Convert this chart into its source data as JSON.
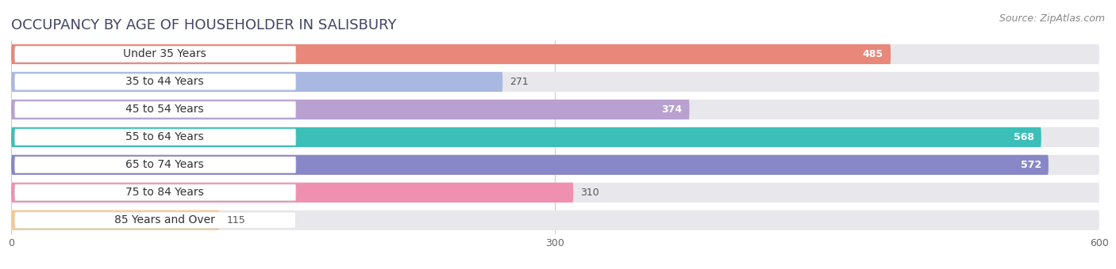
{
  "title": "OCCUPANCY BY AGE OF HOUSEHOLDER IN SALISBURY",
  "source": "Source: ZipAtlas.com",
  "categories": [
    "Under 35 Years",
    "35 to 44 Years",
    "45 to 54 Years",
    "55 to 64 Years",
    "65 to 74 Years",
    "75 to 84 Years",
    "85 Years and Over"
  ],
  "values": [
    485,
    271,
    374,
    568,
    572,
    310,
    115
  ],
  "bar_colors": [
    "#E8877A",
    "#A8B8E0",
    "#B8A0D0",
    "#3BBFB8",
    "#8888C8",
    "#F090B0",
    "#F8C890"
  ],
  "xlim": [
    0,
    600
  ],
  "xticks": [
    0,
    300,
    600
  ],
  "background_color": "#ffffff",
  "bar_bg_color": "#e8e8ec",
  "title_fontsize": 13,
  "label_fontsize": 10,
  "value_fontsize": 9,
  "source_fontsize": 9,
  "value_inside_threshold": 350
}
